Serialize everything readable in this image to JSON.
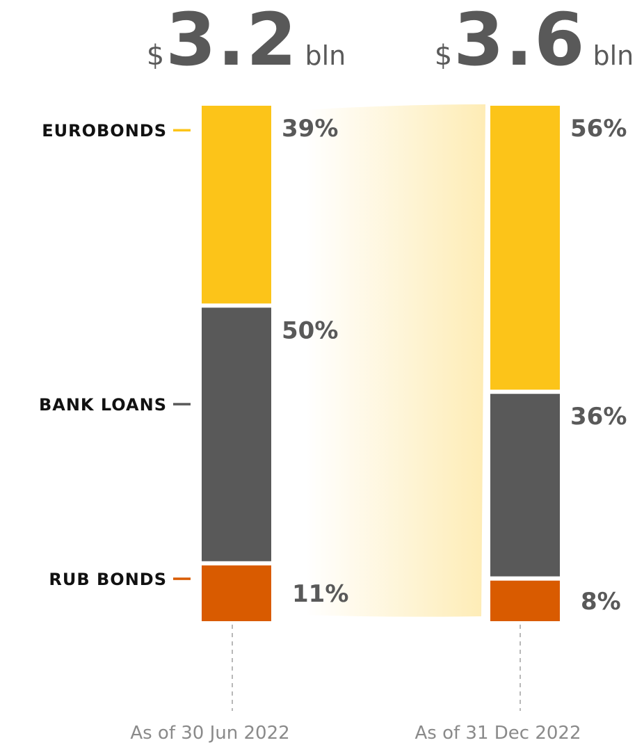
{
  "chart_data": {
    "type": "bar",
    "stacked": true,
    "unit": "%",
    "categories": [
      "As of 30 Jun 2022",
      "As of 31 Dec 2022"
    ],
    "totals": [
      {
        "currency": "$",
        "value": "3.2",
        "unit": "bln"
      },
      {
        "currency": "$",
        "value": "3.6",
        "unit": "bln"
      }
    ],
    "series": [
      {
        "name": "EUROBONDS",
        "color": "#FCC419",
        "values": [
          39,
          56
        ]
      },
      {
        "name": "BANK LOANS",
        "color": "#595959",
        "values": [
          50,
          36
        ]
      },
      {
        "name": "RUB BONDS",
        "color": "#D95B00",
        "values": [
          11,
          8
        ]
      }
    ],
    "ylim": [
      0,
      100
    ],
    "legend": "left",
    "grid": false
  }
}
